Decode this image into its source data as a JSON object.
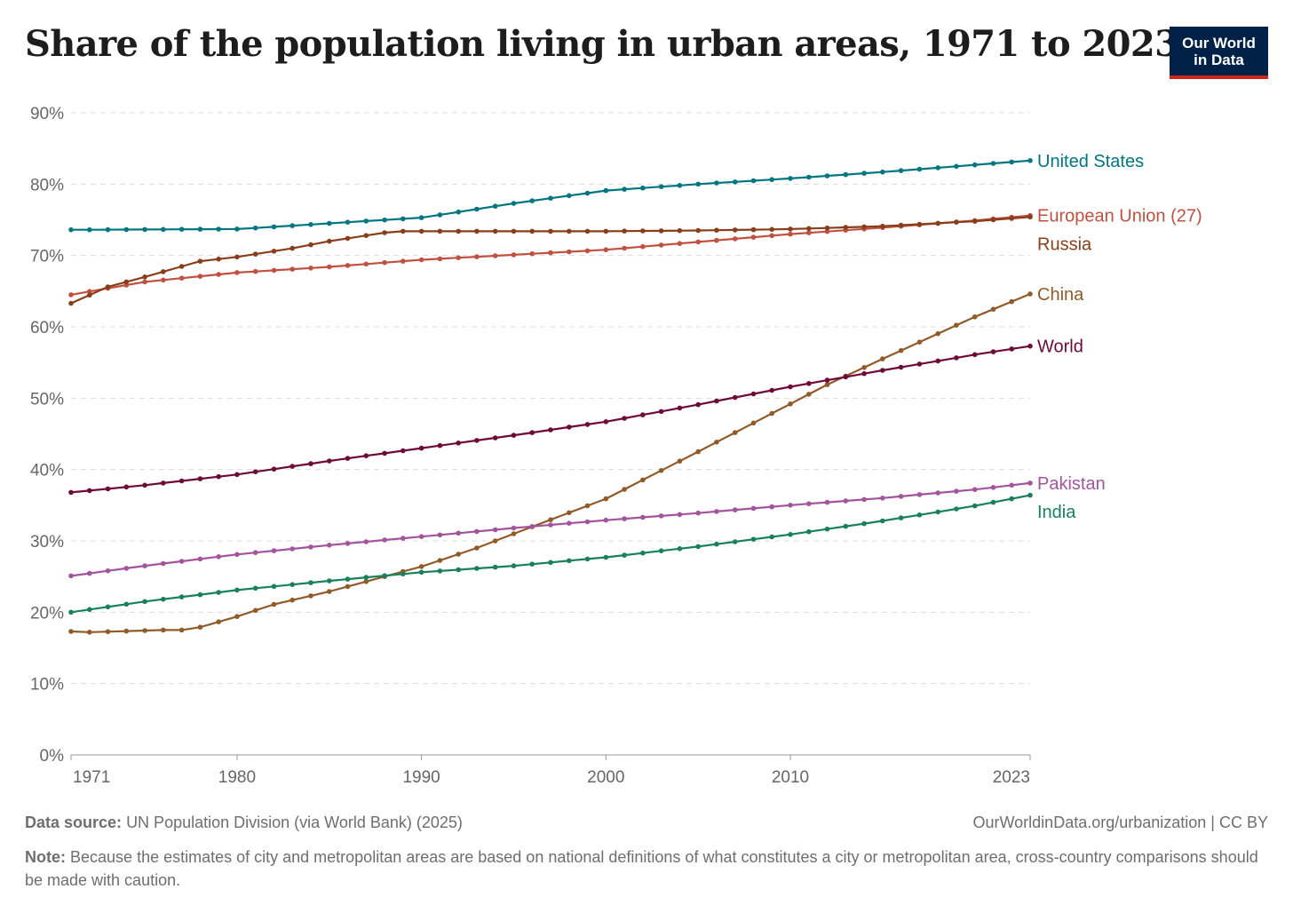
{
  "title": "Share of the population living in urban areas, 1971 to 2023",
  "logo": {
    "line1": "Our World",
    "line2": "in Data",
    "bg": "#002147",
    "accent": "#ce261e"
  },
  "footer": {
    "source_label": "Data source:",
    "source_text": "UN Population Division (via World Bank) (2025)",
    "url": "OurWorldinData.org/urbanization | CC BY",
    "note_label": "Note:",
    "note_text": "Because the estimates of city and metropolitan areas are based on national definitions of what constitutes a city or metropolitan area, cross-country comparisons should be made with caution."
  },
  "chart_data": {
    "type": "line",
    "title": "Share of the population living in urban areas, 1971 to 2023",
    "xlabel": "",
    "ylabel": "",
    "xlim": [
      1971,
      2023
    ],
    "ylim": [
      0,
      90
    ],
    "x_ticks": [
      "1971",
      "1980",
      "1990",
      "2000",
      "2010",
      "2023"
    ],
    "x_tick_values": [
      1971,
      1980,
      1990,
      2000,
      2010,
      2023
    ],
    "y_ticks": [
      "0%",
      "10%",
      "20%",
      "30%",
      "40%",
      "50%",
      "60%",
      "70%",
      "80%",
      "90%"
    ],
    "y_tick_values": [
      0,
      10,
      20,
      30,
      40,
      50,
      60,
      70,
      80,
      90
    ],
    "grid": true,
    "legend": "inline labels at right end of lines",
    "series": [
      {
        "name": "United States",
        "color": "#007681",
        "keypoints": [
          [
            1971,
            73.6
          ],
          [
            1980,
            73.7
          ],
          [
            1985,
            74.5
          ],
          [
            1990,
            75.3
          ],
          [
            1995,
            77.3
          ],
          [
            2000,
            79.1
          ],
          [
            2005,
            80.0
          ],
          [
            2010,
            80.8
          ],
          [
            2015,
            81.7
          ],
          [
            2020,
            82.7
          ],
          [
            2023,
            83.3
          ]
        ]
      },
      {
        "name": "European Union (27)",
        "color": "#c05140",
        "keypoints": [
          [
            1971,
            64.5
          ],
          [
            1975,
            66.3
          ],
          [
            1980,
            67.6
          ],
          [
            1985,
            68.4
          ],
          [
            1990,
            69.4
          ],
          [
            1995,
            70.1
          ],
          [
            2000,
            70.8
          ],
          [
            2005,
            71.9
          ],
          [
            2010,
            73.0
          ],
          [
            2015,
            73.9
          ],
          [
            2020,
            74.9
          ],
          [
            2023,
            75.6
          ]
        ]
      },
      {
        "name": "Russia",
        "color": "#883e1a",
        "keypoints": [
          [
            1971,
            63.3
          ],
          [
            1973,
            65.6
          ],
          [
            1975,
            67.0
          ],
          [
            1978,
            69.2
          ],
          [
            1980,
            69.8
          ],
          [
            1983,
            71.0
          ],
          [
            1985,
            72.0
          ],
          [
            1988,
            73.2
          ],
          [
            1989,
            73.4
          ],
          [
            1995,
            73.4
          ],
          [
            2000,
            73.4
          ],
          [
            2005,
            73.5
          ],
          [
            2010,
            73.7
          ],
          [
            2015,
            74.1
          ],
          [
            2020,
            74.8
          ],
          [
            2023,
            75.4
          ]
        ]
      },
      {
        "name": "China",
        "color": "#915a29",
        "keypoints": [
          [
            1971,
            17.3
          ],
          [
            1972,
            17.2
          ],
          [
            1976,
            17.5
          ],
          [
            1977,
            17.5
          ],
          [
            1978,
            17.9
          ],
          [
            1980,
            19.4
          ],
          [
            1982,
            21.1
          ],
          [
            1985,
            22.9
          ],
          [
            1988,
            25.0
          ],
          [
            1990,
            26.4
          ],
          [
            1993,
            29.0
          ],
          [
            1995,
            31.0
          ],
          [
            2000,
            35.9
          ],
          [
            2005,
            42.5
          ],
          [
            2010,
            49.2
          ],
          [
            2012,
            51.9
          ],
          [
            2015,
            55.5
          ],
          [
            2020,
            61.4
          ],
          [
            2023,
            64.6
          ]
        ]
      },
      {
        "name": "World",
        "color": "#6d0a39",
        "keypoints": [
          [
            1971,
            36.8
          ],
          [
            1975,
            37.8
          ],
          [
            1980,
            39.3
          ],
          [
            1985,
            41.2
          ],
          [
            1990,
            43.0
          ],
          [
            1995,
            44.8
          ],
          [
            2000,
            46.7
          ],
          [
            2005,
            49.1
          ],
          [
            2010,
            51.6
          ],
          [
            2015,
            53.9
          ],
          [
            2020,
            56.1
          ],
          [
            2023,
            57.3
          ]
        ]
      },
      {
        "name": "Pakistan",
        "color": "#a2559c",
        "keypoints": [
          [
            1971,
            25.1
          ],
          [
            1975,
            26.5
          ],
          [
            1980,
            28.1
          ],
          [
            1985,
            29.4
          ],
          [
            1990,
            30.6
          ],
          [
            1995,
            31.8
          ],
          [
            2000,
            32.9
          ],
          [
            2005,
            33.9
          ],
          [
            2010,
            35.0
          ],
          [
            2015,
            36.0
          ],
          [
            2020,
            37.2
          ],
          [
            2023,
            38.1
          ]
        ]
      },
      {
        "name": "India",
        "color": "#18805c",
        "keypoints": [
          [
            1971,
            20.0
          ],
          [
            1975,
            21.5
          ],
          [
            1980,
            23.1
          ],
          [
            1985,
            24.4
          ],
          [
            1990,
            25.6
          ],
          [
            1995,
            26.5
          ],
          [
            2000,
            27.7
          ],
          [
            2005,
            29.2
          ],
          [
            2010,
            30.9
          ],
          [
            2015,
            32.8
          ],
          [
            2020,
            34.9
          ],
          [
            2023,
            36.4
          ]
        ]
      }
    ]
  }
}
